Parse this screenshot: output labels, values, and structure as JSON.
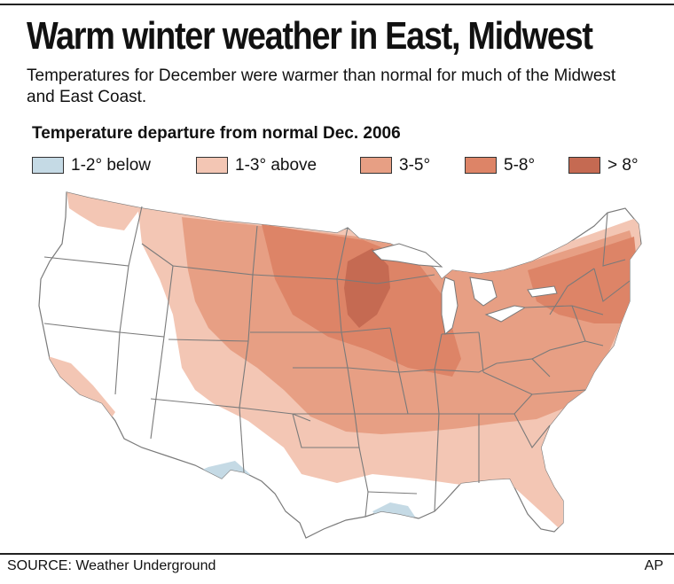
{
  "header": {
    "title": "Warm winter weather in East, Midwest",
    "subtitle": "Temperatures for December were warmer than normal for much of the Midwest and East Coast."
  },
  "legend": {
    "title": "Temperature departure from normal Dec. 2006",
    "items": [
      {
        "label": "1-2° below",
        "color": "#c5dae5"
      },
      {
        "label": "1-3° above",
        "color": "#f3c6b4"
      },
      {
        "label": "3-5°",
        "color": "#e79f84"
      },
      {
        "label": "5-8°",
        "color": "#dd8467"
      },
      {
        "label": "> 8°",
        "color": "#c56a52"
      }
    ]
  },
  "map": {
    "land_color": "#ffffff",
    "border_color": "#7a7a7a"
  },
  "footer": {
    "source": "SOURCE: Weather Underground",
    "credit": "AP"
  }
}
